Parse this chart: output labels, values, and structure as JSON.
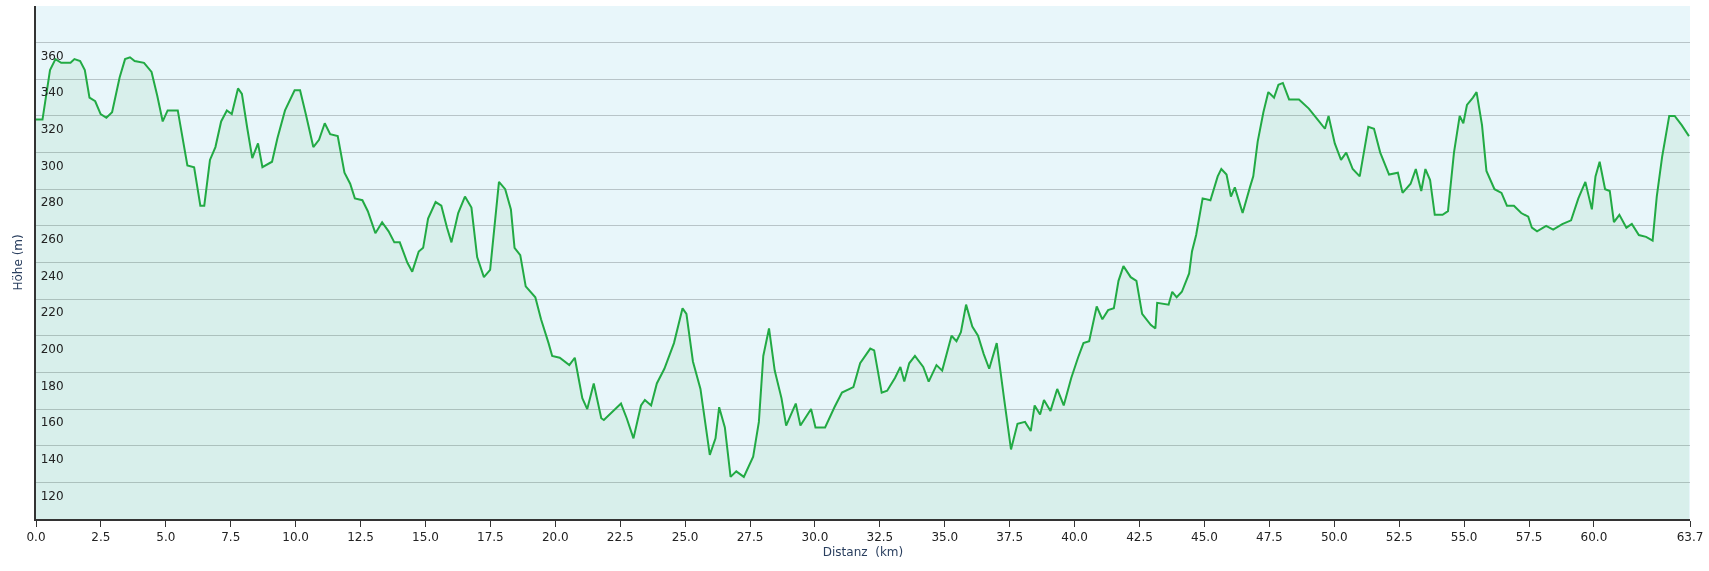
{
  "chart_data": {
    "type": "area",
    "xlabel": "Distanz  (km)",
    "ylabel": "Höhe (m)",
    "xlim": [
      0,
      63.7
    ],
    "ylim": [
      100,
      380
    ],
    "xticks": [
      {
        "value": 0,
        "label": "0.0"
      },
      2.5,
      {
        "value": 5,
        "label": "5.0"
      },
      7.5,
      {
        "value": 10,
        "label": "10.0"
      },
      12.5,
      {
        "value": 15,
        "label": "15.0"
      },
      17.5,
      {
        "value": 20,
        "label": "20.0"
      },
      22.5,
      {
        "value": 25,
        "label": "25.0"
      },
      27.5,
      {
        "value": 30,
        "label": "30.0"
      },
      32.5,
      {
        "value": 35,
        "label": "35.0"
      },
      37.5,
      {
        "value": 40,
        "label": "40.0"
      },
      42.5,
      {
        "value": 45,
        "label": "45.0"
      },
      47.5,
      {
        "value": 50,
        "label": "50.0"
      },
      52.5,
      {
        "value": 55,
        "label": "55.0"
      },
      57.5,
      {
        "value": 60,
        "label": "60.0"
      },
      63.7
    ],
    "yticks": [
      120,
      140,
      160,
      180,
      200,
      220,
      240,
      260,
      280,
      300,
      320,
      340,
      360
    ],
    "grid": "y",
    "series": [
      {
        "color": "#22aa44",
        "x": [
          0,
          0.25,
          0.54,
          0.75,
          0.97,
          1.33,
          1.48,
          1.7,
          1.88,
          2.06,
          2.28,
          2.49,
          2.71,
          2.93,
          3.22,
          3.43,
          3.62,
          3.8,
          4.16,
          4.45,
          4.67,
          4.88,
          5.07,
          5.46,
          5.83,
          6.09,
          6.33,
          6.48,
          6.7,
          6.91,
          7.13,
          7.35,
          7.54,
          7.78,
          7.93,
          8.14,
          8.33,
          8.55,
          8.72,
          9.09,
          9.3,
          9.59,
          9.96,
          10.17,
          10.39,
          10.68,
          10.9,
          11.12,
          11.33,
          11.62,
          11.88,
          12.1,
          12.28,
          12.57,
          12.78,
          13.07,
          13.33,
          13.58,
          13.8,
          14.01,
          14.3,
          14.49,
          14.74,
          14.91,
          15.1,
          15.39,
          15.61,
          15.83,
          16.0,
          16.26,
          16.52,
          16.77,
          16.99,
          17.25,
          17.49,
          17.83,
          18.07,
          18.29,
          18.43,
          18.65,
          18.86,
          19.23,
          19.45,
          19.74,
          19.88,
          20.17,
          20.54,
          20.75,
          21.04,
          21.23,
          21.48,
          21.77,
          21.87,
          22.53,
          22.75,
          23.01,
          23.3,
          23.45,
          23.69,
          23.91,
          24.2,
          24.57,
          24.9,
          25.05,
          25.3,
          25.59,
          25.95,
          26.17,
          26.31,
          26.53,
          26.75,
          26.97,
          27.26,
          27.62,
          27.84,
          28.01,
          28.23,
          28.45,
          28.71,
          28.89,
          29.26,
          29.44,
          29.85,
          30.02,
          30.39,
          30.75,
          31.04,
          31.48,
          31.74,
          32.13,
          32.28,
          32.57,
          32.78,
          33.08,
          33.29,
          33.44,
          33.63,
          33.85,
          34.17,
          34.38,
          34.68,
          34.9,
          35.26,
          35.45,
          35.62,
          35.82,
          36.06,
          36.28,
          36.5,
          36.71,
          37.0,
          37.29,
          37.55,
          37.8,
          38.09,
          38.31,
          38.46,
          38.67,
          38.82,
          39.07,
          39.33,
          39.58,
          39.87,
          40.13,
          40.34,
          40.56,
          40.85,
          41.07,
          41.29,
          41.51,
          41.69,
          41.88,
          42.16,
          42.38,
          42.6,
          42.93,
          43.11,
          43.18,
          43.62,
          43.76,
          43.93,
          44.13,
          44.27,
          44.41,
          44.52,
          44.68,
          44.93,
          45.23,
          45.51,
          45.65,
          45.85,
          46.02,
          46.17,
          46.47,
          46.75,
          46.88,
          47.05,
          47.27,
          47.46,
          47.68,
          47.85,
          48.02,
          48.26,
          48.64,
          49.02,
          49.36,
          49.64,
          49.78,
          50.02,
          50.26,
          50.46,
          50.71,
          50.98,
          51.31,
          51.53,
          51.77,
          52.11,
          52.45,
          52.63,
          52.94,
          53.14,
          53.35,
          53.51,
          53.69,
          53.87,
          54.17,
          54.38,
          54.61,
          54.83,
          54.97,
          55.11,
          55.34,
          55.48,
          55.69,
          55.86,
          56.17,
          56.44,
          56.65,
          56.92,
          57.2,
          57.47,
          57.61,
          57.81,
          58.16,
          58.43,
          58.78,
          59.12,
          59.4,
          59.67,
          59.92,
          60.06,
          60.22,
          60.43,
          60.61,
          60.77,
          60.98,
          61.25,
          61.46,
          61.73,
          62.01,
          62.26,
          62.42,
          62.63,
          62.9,
          63.11,
          63.38,
          63.66
        ],
        "values": [
          318,
          318,
          345,
          351,
          349,
          349,
          351,
          350,
          345,
          330,
          328,
          321,
          319,
          322,
          341,
          351,
          352,
          350,
          349,
          344,
          331,
          317,
          323,
          323,
          293,
          292,
          271,
          271,
          296,
          303,
          317,
          323,
          321,
          335,
          332,
          313,
          297,
          305,
          292,
          295,
          308,
          323,
          334,
          334,
          321,
          303,
          307,
          316,
          310,
          309,
          289,
          283,
          275,
          274,
          268,
          256,
          262,
          257,
          251,
          251,
          240,
          235,
          246,
          248,
          264,
          273,
          271,
          259,
          251,
          267,
          276,
          270,
          243,
          232,
          236,
          284,
          280,
          269,
          248,
          244,
          227,
          221,
          209,
          196,
          189,
          188,
          184,
          188,
          166,
          160,
          174,
          155,
          154,
          163,
          155,
          144,
          162,
          165,
          162,
          174,
          182,
          196,
          215,
          212,
          186,
          171,
          135,
          144,
          161,
          150,
          123,
          126,
          123,
          134,
          153,
          189,
          204,
          181,
          166,
          151,
          163,
          151,
          160,
          150,
          150,
          161,
          169,
          172,
          185,
          193,
          192,
          169,
          170,
          177,
          183,
          175,
          185,
          189,
          183,
          175,
          184,
          181,
          200,
          197,
          202,
          217,
          205,
          200,
          190,
          182,
          196,
          165,
          138,
          152,
          153,
          148,
          162,
          157,
          165,
          159,
          171,
          162,
          177,
          188,
          196,
          197,
          216,
          209,
          214,
          215,
          230,
          238,
          232,
          230,
          212,
          206,
          204,
          218,
          217,
          224,
          221,
          224,
          229,
          234,
          246,
          255,
          275,
          274,
          287,
          291,
          288,
          276,
          281,
          267,
          281,
          287,
          306,
          322,
          333,
          330,
          337,
          338,
          329,
          329,
          324,
          318,
          313,
          320,
          305,
          296,
          300,
          291,
          287,
          314,
          313,
          300,
          288,
          289,
          278,
          283,
          291,
          279,
          291,
          285,
          266,
          266,
          268,
          300,
          320,
          316,
          326,
          330,
          333,
          315,
          290,
          280,
          278,
          271,
          271,
          267,
          265,
          259,
          257,
          260,
          258,
          261,
          263,
          275,
          284,
          269,
          287,
          295,
          280,
          279,
          262,
          266,
          259,
          261,
          255,
          254,
          252,
          276,
          298,
          320,
          320,
          315,
          309
        ]
      }
    ]
  }
}
